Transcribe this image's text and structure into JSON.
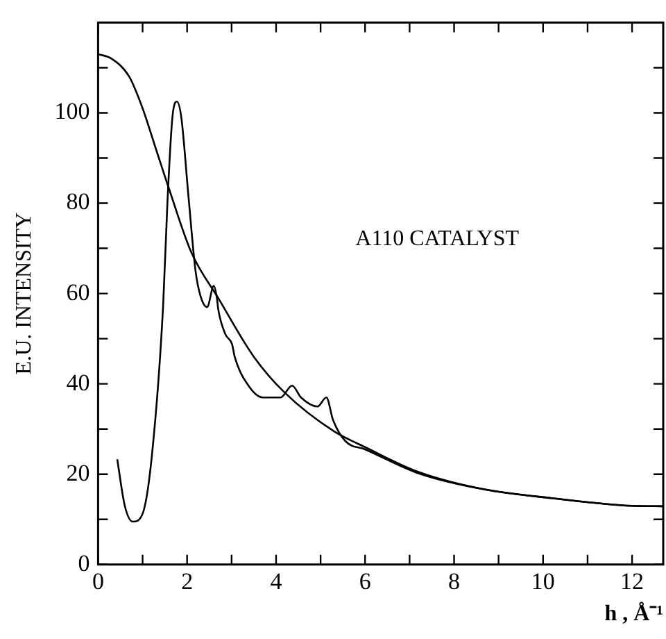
{
  "chart_data": {
    "type": "line",
    "xlabel": "h , Å⁻¹",
    "ylabel": "E.U. INTENSITY",
    "annotations": [
      "A110 CATALYST"
    ],
    "series": [
      {
        "color": "#000000",
        "x": [
          0,
          0.3,
          0.7,
          1,
          1.3,
          1.6,
          2.1,
          2.7,
          3.5,
          4.2,
          5.3,
          6,
          7.2,
          8.7,
          10.2,
          12,
          12.7
        ],
        "values": [
          113,
          112,
          108,
          101,
          92,
          83,
          69,
          59,
          46,
          38,
          29.5,
          26,
          20.5,
          16.6,
          14.7,
          13,
          12.9
        ]
      },
      {
        "color": "#000000",
        "x": [
          0.43,
          0.6,
          0.78,
          0.99,
          1.2,
          1.46,
          1.56,
          1.67,
          1.77,
          1.87,
          2.03,
          2.19,
          2.3,
          2.45,
          2.6,
          2.67,
          2.7,
          2.86,
          3.01,
          3.07,
          3.38,
          3.7,
          4.1,
          4.36,
          4.56,
          4.93,
          5.13,
          5.28,
          5.56,
          6,
          7.2,
          8.7,
          10.2,
          12,
          12.7
        ],
        "values": [
          23.3,
          13,
          9.5,
          11,
          23.3,
          57,
          80.6,
          99,
          102.5,
          99,
          81.6,
          65,
          59.5,
          57,
          61.7,
          59,
          56.5,
          51,
          48.8,
          46,
          39.6,
          37,
          37,
          39.6,
          37,
          35,
          37,
          32,
          27.3,
          25.5,
          20.2,
          16.6,
          14.7,
          13,
          12.9
        ]
      }
    ],
    "xlim": [
      0,
      12.7
    ],
    "xticks": [
      0,
      {
        "value": 1,
        "label": null
      },
      2,
      {
        "value": 3,
        "label": null
      },
      4,
      {
        "value": 5,
        "label": null
      },
      6,
      {
        "value": 7,
        "label": null
      },
      8,
      {
        "value": 9,
        "label": null
      },
      10,
      {
        "value": 11,
        "label": null
      },
      12
    ],
    "ylim": [
      0,
      120
    ],
    "yticks": [
      0,
      {
        "value": 10,
        "label": null
      },
      20,
      {
        "value": 30,
        "label": null
      },
      40,
      {
        "value": 50,
        "label": null
      },
      60,
      {
        "value": 70,
        "label": null
      },
      80,
      {
        "value": 90,
        "label": null
      },
      100,
      {
        "value": 110,
        "label": null
      }
    ],
    "grid": false,
    "legend": false,
    "marker": "none",
    "line_style": "solid"
  }
}
